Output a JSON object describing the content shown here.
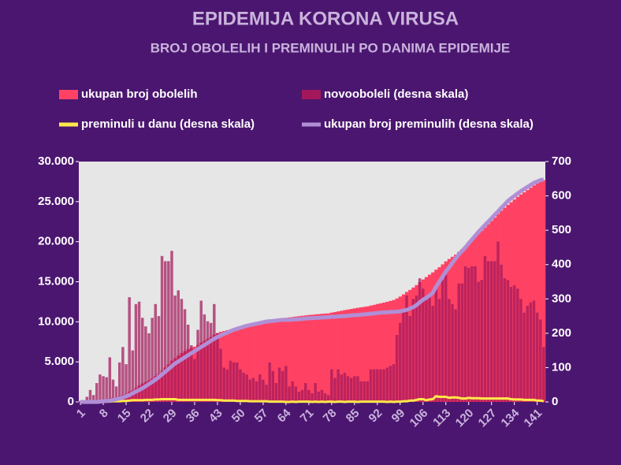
{
  "chart_data": {
    "type": "combo",
    "title": "EPIDEMIJA KORONA VIRUSA",
    "subtitle": "BROJ OBOLELIH I PREMINULIH PO DANIMA EPIDEMIJE",
    "x": [
      1,
      2,
      3,
      4,
      5,
      6,
      7,
      8,
      9,
      10,
      11,
      12,
      13,
      14,
      15,
      16,
      17,
      18,
      19,
      20,
      21,
      22,
      23,
      24,
      25,
      26,
      27,
      28,
      29,
      30,
      31,
      32,
      33,
      34,
      35,
      36,
      37,
      38,
      39,
      40,
      41,
      42,
      43,
      44,
      45,
      46,
      47,
      48,
      49,
      50,
      51,
      52,
      53,
      54,
      55,
      56,
      57,
      58,
      59,
      60,
      61,
      62,
      63,
      64,
      65,
      66,
      67,
      68,
      69,
      70,
      71,
      72,
      73,
      74,
      75,
      76,
      77,
      78,
      79,
      80,
      81,
      82,
      83,
      84,
      85,
      86,
      87,
      88,
      89,
      90,
      91,
      92,
      93,
      94,
      95,
      96,
      97,
      98,
      99,
      100,
      101,
      102,
      103,
      104,
      105,
      106,
      107,
      108,
      109,
      110,
      111,
      112,
      113,
      114,
      115,
      116,
      117,
      118,
      119,
      120,
      121,
      122,
      123,
      124,
      125,
      126,
      127,
      128,
      129,
      130,
      131,
      132,
      133,
      134,
      135,
      136,
      137,
      138,
      139,
      140,
      141,
      142,
      143
    ],
    "xlim": [
      0.5,
      143.5
    ],
    "xticks": [
      1,
      8,
      15,
      22,
      29,
      36,
      43,
      50,
      57,
      64,
      71,
      78,
      85,
      92,
      99,
      106,
      113,
      120,
      127,
      134,
      141
    ],
    "ylim": [
      0,
      30000
    ],
    "yticks": [
      0,
      {
        "value": 5000,
        "label": "5.000"
      },
      {
        "value": 10000,
        "label": "10.000"
      },
      {
        "value": 15000,
        "label": "15.000"
      },
      {
        "value": 20000,
        "label": "20.000"
      },
      {
        "value": 25000,
        "label": "25.000"
      },
      {
        "value": 30000,
        "label": "30.000"
      }
    ],
    "y2lim": [
      0,
      700
    ],
    "y2ticks": [
      0,
      100,
      200,
      300,
      400,
      500,
      600,
      700
    ],
    "series": [
      {
        "name": "ukupan broj obolelih",
        "type": "area-bar",
        "color": "#ff4264",
        "values": [
          1,
          5,
          20,
          50,
          80,
          130,
          200,
          280,
          350,
          480,
          550,
          600,
          720,
          880,
          1000,
          1300,
          1450,
          1750,
          2050,
          2300,
          2500,
          2700,
          2950,
          3250,
          3500,
          3900,
          4300,
          4700,
          5150,
          5450,
          5800,
          6100,
          6350,
          6600,
          6750,
          6900,
          7100,
          7400,
          7650,
          7900,
          8100,
          8400,
          8600,
          8750,
          8850,
          8950,
          9050,
          9150,
          9250,
          9350,
          9450,
          9550,
          9600,
          9700,
          9750,
          9850,
          9900,
          9950,
          10050,
          10150,
          10200,
          10300,
          10400,
          10500,
          10550,
          10600,
          10650,
          10700,
          10750,
          10800,
          10850,
          10880,
          10930,
          10960,
          11000,
          11030,
          11050,
          11150,
          11220,
          11300,
          11380,
          11460,
          11530,
          11600,
          11680,
          11750,
          11810,
          11870,
          11930,
          12030,
          12120,
          12220,
          12310,
          12400,
          12500,
          12610,
          12720,
          12920,
          13150,
          13420,
          13730,
          13980,
          14280,
          14590,
          14950,
          15280,
          15580,
          15890,
          16170,
          16510,
          16810,
          17170,
          17540,
          17840,
          18120,
          18390,
          18740,
          19080,
          19480,
          19870,
          20260,
          20660,
          21010,
          21360,
          21780,
          22190,
          22600,
          23010,
          23480,
          23880,
          24240,
          24600,
          24930,
          25270,
          25600,
          25900,
          26160,
          26440,
          26730,
          27020,
          27280,
          27520,
          27680
        ]
      },
      {
        "name": "novooboleli (desna skala)",
        "type": "bar",
        "axis": "y2",
        "color": "#a2185a",
        "values": [
          3,
          5,
          15,
          35,
          20,
          55,
          80,
          75,
          72,
          130,
          65,
          45,
          115,
          160,
          110,
          305,
          150,
          285,
          292,
          245,
          220,
          200,
          245,
          285,
          250,
          425,
          410,
          410,
          440,
          310,
          325,
          300,
          270,
          225,
          165,
          125,
          210,
          295,
          255,
          235,
          230,
          285,
          200,
          155,
          100,
          95,
          120,
          115,
          115,
          95,
          85,
          80,
          65,
          70,
          60,
          80,
          65,
          50,
          115,
          90,
          55,
          100,
          90,
          105,
          45,
          60,
          45,
          30,
          35,
          55,
          35,
          25,
          55,
          30,
          35,
          25,
          20,
          95,
          70,
          95,
          80,
          85,
          75,
          70,
          75,
          75,
          60,
          60,
          60,
          95,
          95,
          95,
          95,
          95,
          100,
          105,
          110,
          195,
          230,
          270,
          310,
          250,
          300,
          310,
          360,
          330,
          300,
          310,
          280,
          340,
          300,
          355,
          370,
          300,
          285,
          270,
          345,
          345,
          395,
          390,
          395,
          395,
          350,
          355,
          425,
          410,
          410,
          410,
          467,
          400,
          360,
          355,
          335,
          340,
          330,
          300,
          260,
          280,
          290,
          295,
          260,
          240,
          160
        ]
      },
      {
        "name": "preminuli u danu (desna skala)",
        "type": "line",
        "axis": "y2",
        "color": "#ffe84a",
        "values": [
          0,
          0,
          0,
          0,
          0,
          0,
          1,
          1,
          1,
          1,
          2,
          2,
          2,
          3,
          3,
          4,
          5,
          5,
          5,
          5,
          6,
          6,
          6,
          7,
          7,
          8,
          8,
          8,
          8,
          8,
          6,
          6,
          6,
          6,
          6,
          6,
          6,
          6,
          6,
          6,
          6,
          6,
          5,
          5,
          4,
          4,
          4,
          4,
          3,
          3,
          3,
          3,
          2,
          2,
          2,
          2,
          2,
          2,
          1,
          1,
          1,
          1,
          1,
          0,
          0,
          1,
          0,
          1,
          1,
          1,
          1,
          0,
          1,
          0,
          1,
          0,
          1,
          1,
          0,
          1,
          1,
          0,
          1,
          1,
          1,
          0,
          1,
          1,
          1,
          1,
          1,
          1,
          1,
          1,
          0,
          1,
          0,
          1,
          1,
          2,
          2,
          4,
          4,
          6,
          8,
          8,
          5,
          7,
          8,
          17,
          15,
          15,
          15,
          12,
          13,
          13,
          12,
          10,
          10,
          12,
          11,
          11,
          11,
          10,
          10,
          10,
          10,
          10,
          10,
          10,
          10,
          10,
          8,
          7,
          7,
          7,
          6,
          6,
          6,
          6,
          4,
          4,
          2
        ]
      },
      {
        "name": "ukupan broj preminulih (desna skala)",
        "type": "line",
        "axis": "y2",
        "color": "#b18fd6",
        "values": [
          0,
          0,
          0,
          0,
          0,
          0,
          1,
          2,
          3,
          4,
          6,
          8,
          10,
          13,
          16,
          20,
          25,
          30,
          35,
          40,
          46,
          52,
          58,
          65,
          72,
          80,
          88,
          96,
          104,
          112,
          118,
          124,
          130,
          136,
          142,
          148,
          154,
          160,
          166,
          172,
          178,
          184,
          189,
          194,
          198,
          202,
          206,
          210,
          213,
          216,
          219,
          222,
          224,
          226,
          228,
          230,
          232,
          234,
          235,
          236,
          237,
          238,
          239,
          239,
          239,
          240,
          240,
          241,
          242,
          243,
          244,
          244,
          245,
          245,
          246,
          246,
          247,
          248,
          248,
          249,
          250,
          250,
          251,
          252,
          253,
          253,
          254,
          255,
          256,
          257,
          258,
          259,
          260,
          261,
          261,
          262,
          262,
          263,
          264,
          266,
          268,
          272,
          276,
          282,
          290,
          298,
          303,
          310,
          318,
          335,
          350,
          365,
          380,
          392,
          405,
          418,
          430,
          440,
          450,
          462,
          473,
          484,
          495,
          505,
          515,
          525,
          535,
          545,
          555,
          565,
          575,
          585,
          593,
          600,
          607,
          614,
          620,
          626,
          632,
          638,
          642,
          646,
          648
        ]
      }
    ]
  }
}
